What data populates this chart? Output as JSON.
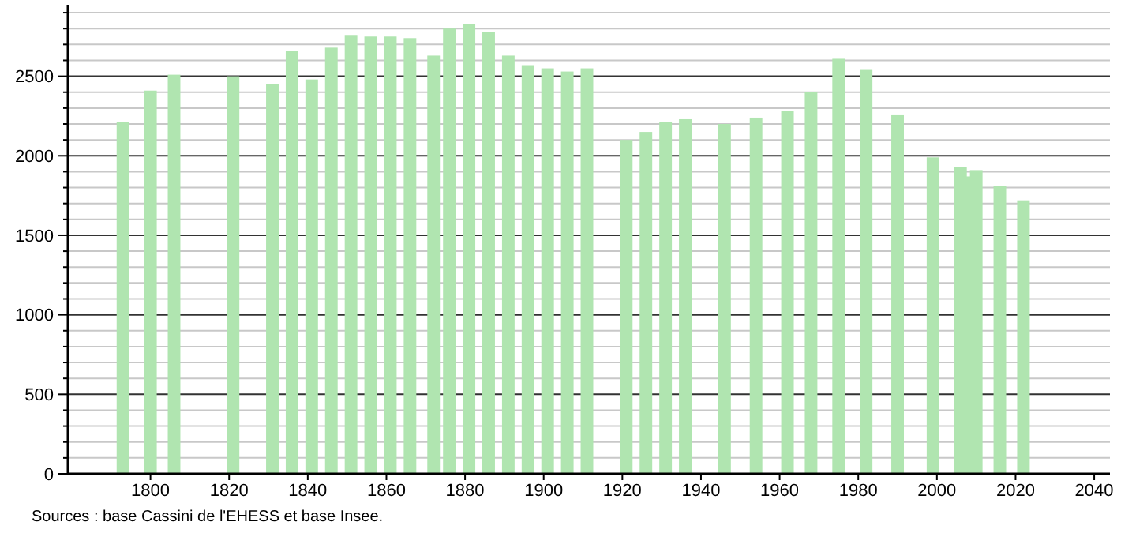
{
  "chart_data": {
    "type": "bar",
    "color": "#b0e5b0",
    "x": [
      1793,
      1800,
      1806,
      1821,
      1831,
      1836,
      1841,
      1846,
      1851,
      1856,
      1861,
      1866,
      1872,
      1876,
      1881,
      1886,
      1891,
      1896,
      1901,
      1906,
      1911,
      1921,
      1926,
      1931,
      1936,
      1946,
      1954,
      1962,
      1968,
      1975,
      1982,
      1990,
      1999,
      2006,
      2008,
      2010,
      2016,
      2022
    ],
    "values": [
      2210,
      2410,
      2510,
      2500,
      2450,
      2660,
      2480,
      2680,
      2760,
      2750,
      2750,
      2740,
      2630,
      2800,
      2830,
      2780,
      2630,
      2570,
      2550,
      2530,
      2550,
      2100,
      2150,
      2210,
      2230,
      2200,
      2240,
      2280,
      2400,
      2610,
      2540,
      2260,
      1990,
      1930,
      1870,
      1910,
      1810,
      1720
    ],
    "xlim": [
      1779,
      2044
    ],
    "xticks": [
      1800,
      1820,
      1840,
      1860,
      1880,
      1900,
      1920,
      1940,
      1960,
      1980,
      2000,
      2020,
      2040
    ],
    "ylim": [
      0,
      2950
    ],
    "yticks": [
      0,
      {
        "value": 100,
        "label": null
      },
      {
        "value": 200,
        "label": null
      },
      {
        "value": 300,
        "label": null
      },
      {
        "value": 400,
        "label": null
      },
      500,
      {
        "value": 600,
        "label": null
      },
      {
        "value": 700,
        "label": null
      },
      {
        "value": 800,
        "label": null
      },
      {
        "value": 900,
        "label": null
      },
      1000,
      {
        "value": 1100,
        "label": null
      },
      {
        "value": 1200,
        "label": null
      },
      {
        "value": 1300,
        "label": null
      },
      {
        "value": 1400,
        "label": null
      },
      1500,
      {
        "value": 1600,
        "label": null
      },
      {
        "value": 1700,
        "label": null
      },
      {
        "value": 1800,
        "label": null
      },
      {
        "value": 1900,
        "label": null
      },
      2000,
      {
        "value": 2100,
        "label": null
      },
      {
        "value": 2200,
        "label": null
      },
      {
        "value": 2300,
        "label": null
      },
      {
        "value": 2400,
        "label": null
      },
      2500,
      {
        "value": 2600,
        "label": null
      },
      {
        "value": 2700,
        "label": null
      },
      {
        "value": 2800,
        "label": null
      },
      {
        "value": 2900,
        "label": null
      }
    ],
    "grid": "y",
    "annotations": [
      "Sources : base Cassini de l'EHESS et base Insee."
    ]
  }
}
